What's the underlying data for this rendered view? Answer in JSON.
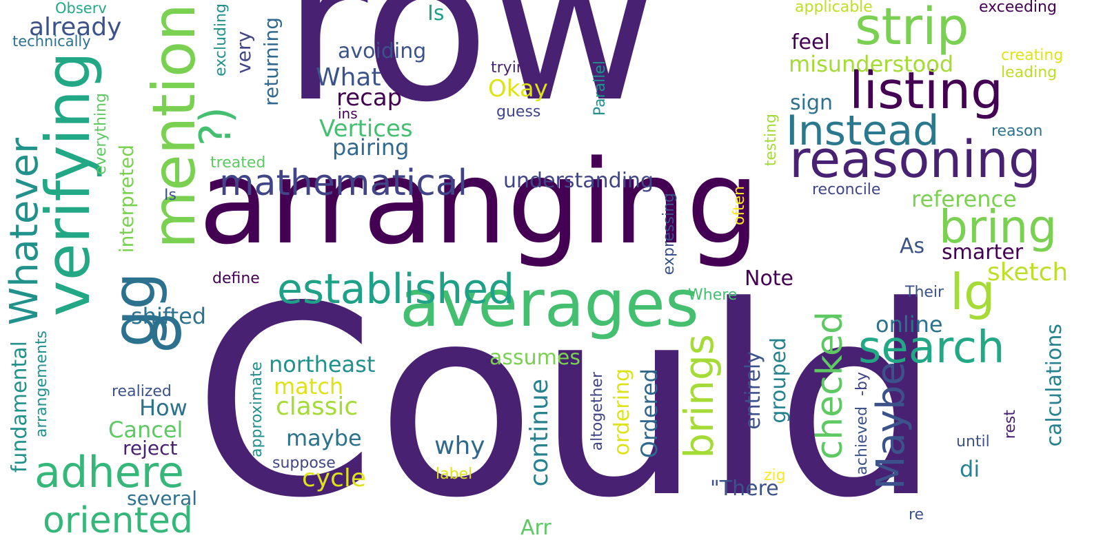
{
  "words": [
    {
      "id": "row",
      "text": "row",
      "color": "#482173"
    },
    {
      "id": "arranging",
      "text": "arranging",
      "color": "#440154"
    },
    {
      "id": "could",
      "text": "Could",
      "color": "#482173"
    },
    {
      "id": "verifying",
      "text": "verifying",
      "color": "#22a884"
    },
    {
      "id": "mention",
      "text": "mention",
      "color": "#7ad151"
    },
    {
      "id": "averages",
      "text": "averages",
      "color": "#44bf70"
    },
    {
      "id": "strip",
      "text": "strip",
      "color": "#7ad151"
    },
    {
      "id": "listing",
      "text": "listing",
      "color": "#440154"
    },
    {
      "id": "reasoning",
      "text": "reasoning",
      "color": "#482173"
    },
    {
      "id": "instead",
      "text": "Instead",
      "color": "#2a788e"
    },
    {
      "id": "established",
      "text": "established",
      "color": "#1fa187"
    },
    {
      "id": "mathematical",
      "text": "mathematical",
      "color": "#414487"
    },
    {
      "id": "whatever",
      "text": "Whatever",
      "color": "#21918c"
    },
    {
      "id": "bring",
      "text": "bring",
      "color": "#7ad151"
    },
    {
      "id": "search",
      "text": "search",
      "color": "#22a884"
    },
    {
      "id": "lg",
      "text": "lg",
      "color": "#a5db36"
    },
    {
      "id": "maybe-big",
      "text": "Maybe",
      "color": "#3b528b"
    },
    {
      "id": "adhere",
      "text": "adhere",
      "color": "#35b779"
    },
    {
      "id": "oriented",
      "text": "oriented",
      "color": "#35b779"
    },
    {
      "id": "gg",
      "text": "gg",
      "color": "#2c728e"
    },
    {
      "id": "o",
      "text": "o",
      "color": "#2c728e"
    },
    {
      "id": "brings",
      "text": "brings",
      "color": "#a5db36"
    },
    {
      "id": "checked",
      "text": "checked",
      "color": "#5ec962"
    },
    {
      "id": "smile",
      "text": "?)",
      "color": "#44bf70"
    },
    {
      "id": "already",
      "text": "already",
      "color": "#3b528b"
    },
    {
      "id": "technically",
      "text": "technically",
      "color": "#2c728e"
    },
    {
      "id": "observ",
      "text": "Observ",
      "color": "#22a884"
    },
    {
      "id": "is-top",
      "text": "Is",
      "color": "#1fa187"
    },
    {
      "id": "avoiding",
      "text": "avoiding",
      "color": "#3b528b"
    },
    {
      "id": "what",
      "text": "What",
      "color": "#3b528b"
    },
    {
      "id": "recap",
      "text": "recap",
      "color": "#440154"
    },
    {
      "id": "ins",
      "text": "ins",
      "color": "#440154"
    },
    {
      "id": "vertices",
      "text": "Vertices",
      "color": "#44bf70"
    },
    {
      "id": "pairing",
      "text": "pairing",
      "color": "#31688e"
    },
    {
      "id": "trying",
      "text": "trying",
      "color": "#482173"
    },
    {
      "id": "okay",
      "text": "Okay",
      "color": "#dde318"
    },
    {
      "id": "guess",
      "text": "guess",
      "color": "#414487"
    },
    {
      "id": "applicable",
      "text": "applicable",
      "color": "#bddf26"
    },
    {
      "id": "exceeding",
      "text": "exceeding",
      "color": "#440154"
    },
    {
      "id": "creating",
      "text": "creating",
      "color": "#dde318"
    },
    {
      "id": "leading",
      "text": "leading",
      "color": "#bddf26"
    },
    {
      "id": "feel",
      "text": "feel",
      "color": "#440154"
    },
    {
      "id": "misunderstood",
      "text": "misunderstood",
      "color": "#a5db36"
    },
    {
      "id": "sign",
      "text": "sign",
      "color": "#2c728e"
    },
    {
      "id": "reason",
      "text": "reason",
      "color": "#2c728e"
    },
    {
      "id": "understanding",
      "text": "understanding",
      "color": "#414487"
    },
    {
      "id": "reconcile",
      "text": "reconcile",
      "color": "#414487"
    },
    {
      "id": "reference",
      "text": "reference",
      "color": "#7ad151"
    },
    {
      "id": "as",
      "text": "As",
      "color": "#3b528b"
    },
    {
      "id": "smarter",
      "text": "smarter",
      "color": "#440154"
    },
    {
      "id": "sketch",
      "text": "sketch",
      "color": "#bddf26"
    },
    {
      "id": "note",
      "text": "Note",
      "color": "#440154"
    },
    {
      "id": "their",
      "text": "Their",
      "color": "#3b528b"
    },
    {
      "id": "online",
      "text": "online",
      "color": "#2c728e"
    },
    {
      "id": "where",
      "text": "Where",
      "color": "#44bf70"
    },
    {
      "id": "shifted",
      "text": "shifted",
      "color": "#2c728e"
    },
    {
      "id": "define",
      "text": "define",
      "color": "#440154"
    },
    {
      "id": "is-mid",
      "text": "Is",
      "color": "#3b528b"
    },
    {
      "id": "treated",
      "text": "treated",
      "color": "#5ec962"
    },
    {
      "id": "northeast",
      "text": "northeast",
      "color": "#21918c"
    },
    {
      "id": "match",
      "text": "match",
      "color": "#dde318"
    },
    {
      "id": "classic",
      "text": "classic",
      "color": "#a5db36"
    },
    {
      "id": "how",
      "text": "How",
      "color": "#2c728e"
    },
    {
      "id": "cancel",
      "text": "Cancel",
      "color": "#5ec962"
    },
    {
      "id": "reject",
      "text": "reject",
      "color": "#482173"
    },
    {
      "id": "several",
      "text": "several",
      "color": "#2c728e"
    },
    {
      "id": "realized",
      "text": "realized",
      "color": "#3b528b"
    },
    {
      "id": "assumes",
      "text": "assumes",
      "color": "#7ad151"
    },
    {
      "id": "maybe-small",
      "text": "maybe",
      "color": "#2c728e"
    },
    {
      "id": "why",
      "text": "why",
      "color": "#31688e"
    },
    {
      "id": "cycle",
      "text": "cycle",
      "color": "#dde318"
    },
    {
      "id": "suppose",
      "text": "suppose",
      "color": "#414487"
    },
    {
      "id": "label",
      "text": "label",
      "color": "#dde318"
    },
    {
      "id": "arr",
      "text": "Arr",
      "color": "#5ec962"
    },
    {
      "id": "there",
      "text": "\"There",
      "color": "#3b528b"
    },
    {
      "id": "zig",
      "text": "zig",
      "color": "#fde725"
    },
    {
      "id": "di",
      "text": "di",
      "color": "#26828e"
    },
    {
      "id": "until",
      "text": "until",
      "color": "#3b528b"
    },
    {
      "id": "re",
      "text": "re",
      "color": "#3b528b"
    },
    {
      "id": "returning",
      "text": "returning",
      "color": "#31688e"
    },
    {
      "id": "very",
      "text": "very",
      "color": "#414487"
    },
    {
      "id": "excluding",
      "text": "excluding",
      "color": "#21918c"
    },
    {
      "id": "everything",
      "text": "everything",
      "color": "#5ec962"
    },
    {
      "id": "interpreted",
      "text": "interpreted",
      "color": "#7ad151"
    },
    {
      "id": "fundamental",
      "text": "fundamental",
      "color": "#21918c"
    },
    {
      "id": "arrangements",
      "text": "arrangements",
      "color": "#21918c"
    },
    {
      "id": "approximate",
      "text": "approximate",
      "color": "#21918c"
    },
    {
      "id": "continue",
      "text": "continue",
      "color": "#26828e"
    },
    {
      "id": "altogether",
      "text": "altogether",
      "color": "#414487"
    },
    {
      "id": "ordering",
      "text": "ordering",
      "color": "#dde318"
    },
    {
      "id": "ordered",
      "text": "Ordered",
      "color": "#31688e"
    },
    {
      "id": "entirely",
      "text": "entirely",
      "color": "#3b528b"
    },
    {
      "id": "grouped",
      "text": "grouped",
      "color": "#26828e"
    },
    {
      "id": "achieved",
      "text": "achieved",
      "color": "#3b528b"
    },
    {
      "id": "by",
      "text": "-by",
      "color": "#414487"
    },
    {
      "id": "rest",
      "text": "rest",
      "color": "#482173"
    },
    {
      "id": "calculations",
      "text": "calculations",
      "color": "#26828e"
    },
    {
      "id": "expressing",
      "text": "expressing",
      "color": "#3b528b"
    },
    {
      "id": "often",
      "text": "often",
      "color": "#fde725"
    },
    {
      "id": "testing",
      "text": "testing",
      "color": "#a5db36"
    },
    {
      "id": "parallel",
      "text": "Parallel",
      "color": "#21918c"
    }
  ]
}
